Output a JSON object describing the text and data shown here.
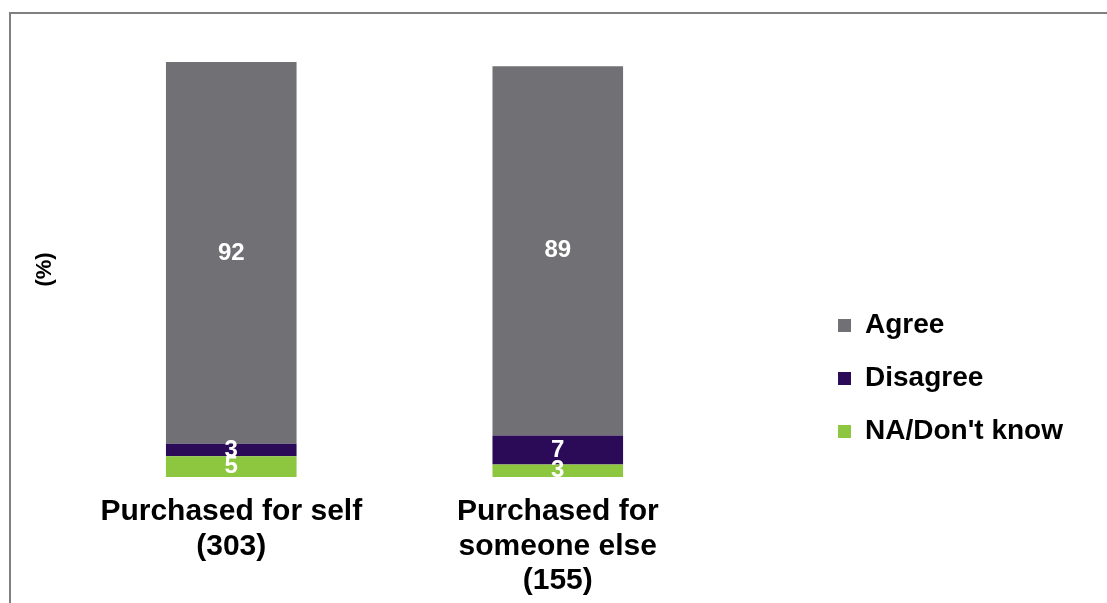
{
  "chart_data": {
    "type": "bar",
    "stacked": true,
    "ylabel": "(%)",
    "categories": [
      "Purchased for self\n(303)",
      "Purchased for\nsomeone else\n(155)"
    ],
    "series": [
      {
        "name": "NA/Don't know",
        "color": "#8dc63f",
        "values": [
          5,
          3
        ]
      },
      {
        "name": "Disagree",
        "color": "#2b0a57",
        "values": [
          3,
          7
        ]
      },
      {
        "name": "Agree",
        "color": "#717074",
        "values": [
          92,
          89
        ]
      }
    ],
    "ylim": [
      0,
      100
    ],
    "tick_labels": "x",
    "legend": "right",
    "data_labels": true
  }
}
